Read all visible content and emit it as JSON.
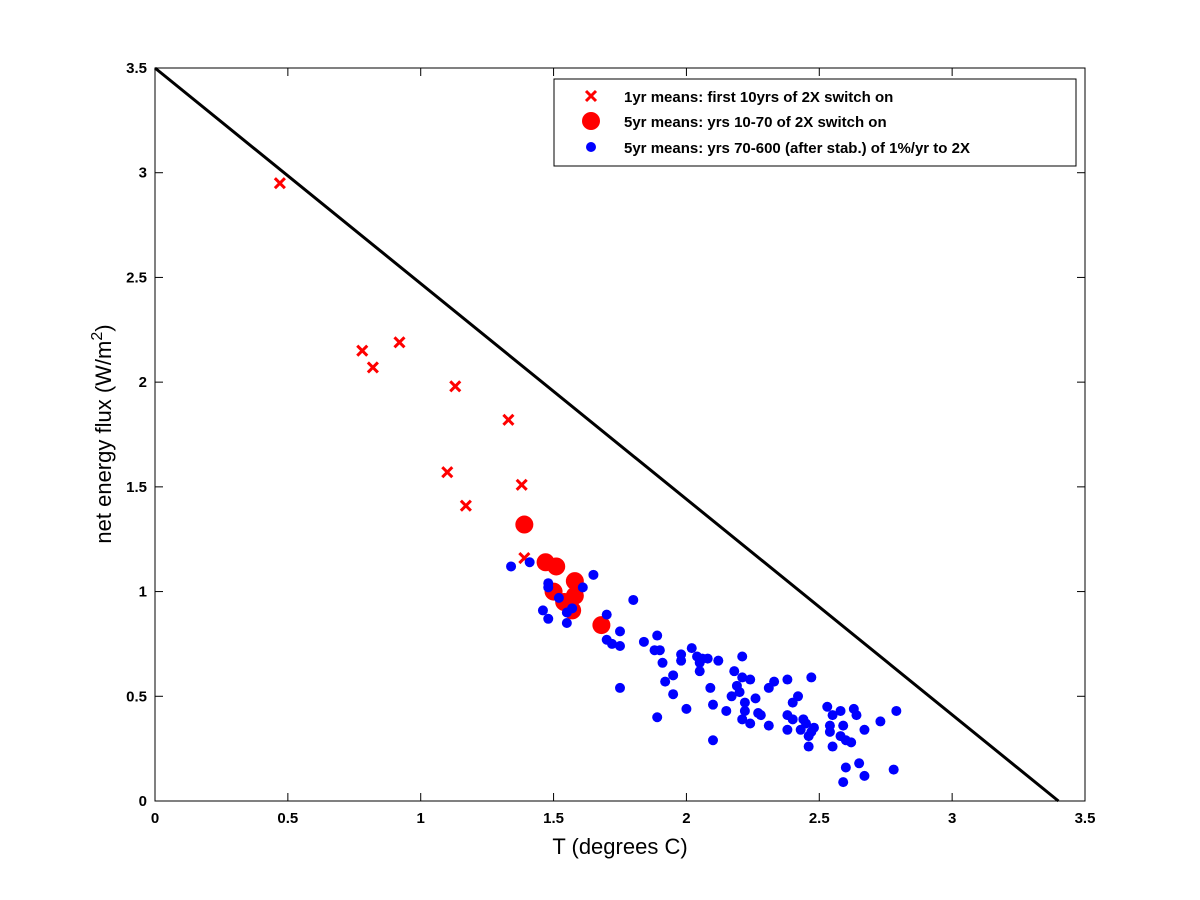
{
  "chart_data": {
    "type": "scatter",
    "xlabel": "T (degrees C)",
    "ylabel": "net energy flux (W/m²)",
    "xlim": [
      0,
      3.5
    ],
    "ylim": [
      0,
      3.5
    ],
    "x_ticks": [
      "0",
      "0.5",
      "1",
      "1.5",
      "2",
      "2.5",
      "3",
      "3.5"
    ],
    "y_ticks": [
      "0",
      "0.5",
      "1",
      "1.5",
      "2",
      "2.5",
      "3",
      "3.5"
    ],
    "grid": false,
    "legend_position": "top-right",
    "reference_line": {
      "color": "#000000",
      "points": [
        [
          0,
          3.5
        ],
        [
          3.4,
          0
        ]
      ]
    },
    "series": [
      {
        "name": "1yr means: first 10yrs of 2X switch on",
        "marker": "x",
        "color": "#ff0000",
        "points": [
          [
            0.47,
            2.95
          ],
          [
            0.78,
            2.15
          ],
          [
            0.82,
            2.07
          ],
          [
            0.92,
            2.19
          ],
          [
            1.13,
            1.98
          ],
          [
            1.33,
            1.82
          ],
          [
            1.1,
            1.57
          ],
          [
            1.17,
            1.41
          ],
          [
            1.38,
            1.51
          ],
          [
            1.39,
            1.16
          ]
        ]
      },
      {
        "name": "5yr means: yrs 10-70 of 2X switch on",
        "marker": "large-dot",
        "color": "#ff0000",
        "points": [
          [
            1.39,
            1.32
          ],
          [
            1.47,
            1.14
          ],
          [
            1.51,
            1.12
          ],
          [
            1.58,
            1.05
          ],
          [
            1.5,
            1.0
          ],
          [
            1.58,
            0.98
          ],
          [
            1.54,
            0.95
          ],
          [
            1.57,
            0.91
          ],
          [
            1.68,
            0.84
          ]
        ]
      },
      {
        "name": "5yr means: yrs 70-600 (after stab.) of 1%/yr to 2X",
        "marker": "dot",
        "color": "#0000ff",
        "points": [
          [
            1.34,
            1.12
          ],
          [
            1.41,
            1.14
          ],
          [
            1.48,
            1.04
          ],
          [
            1.48,
            1.02
          ],
          [
            1.46,
            0.91
          ],
          [
            1.48,
            0.87
          ],
          [
            1.52,
            0.97
          ],
          [
            1.55,
            0.9
          ],
          [
            1.55,
            0.85
          ],
          [
            1.57,
            0.92
          ],
          [
            1.61,
            1.02
          ],
          [
            1.65,
            1.08
          ],
          [
            1.7,
            0.89
          ],
          [
            1.7,
            0.77
          ],
          [
            1.72,
            0.75
          ],
          [
            1.75,
            0.81
          ],
          [
            1.75,
            0.74
          ],
          [
            1.75,
            0.54
          ],
          [
            1.8,
            0.96
          ],
          [
            1.84,
            0.76
          ],
          [
            1.88,
            0.72
          ],
          [
            1.89,
            0.79
          ],
          [
            1.9,
            0.72
          ],
          [
            1.91,
            0.66
          ],
          [
            1.92,
            0.57
          ],
          [
            1.89,
            0.4
          ],
          [
            1.95,
            0.6
          ],
          [
            1.95,
            0.51
          ],
          [
            1.98,
            0.67
          ],
          [
            1.98,
            0.7
          ],
          [
            2.0,
            0.44
          ],
          [
            2.02,
            0.73
          ],
          [
            2.04,
            0.69
          ],
          [
            2.05,
            0.62
          ],
          [
            2.05,
            0.66
          ],
          [
            2.06,
            0.68
          ],
          [
            2.08,
            0.68
          ],
          [
            2.09,
            0.54
          ],
          [
            2.1,
            0.46
          ],
          [
            2.1,
            0.29
          ],
          [
            2.12,
            0.67
          ],
          [
            2.15,
            0.43
          ],
          [
            2.17,
            0.5
          ],
          [
            2.18,
            0.62
          ],
          [
            2.19,
            0.55
          ],
          [
            2.2,
            0.52
          ],
          [
            2.21,
            0.69
          ],
          [
            2.21,
            0.59
          ],
          [
            2.22,
            0.47
          ],
          [
            2.22,
            0.43
          ],
          [
            2.21,
            0.39
          ],
          [
            2.24,
            0.58
          ],
          [
            2.24,
            0.37
          ],
          [
            2.26,
            0.49
          ],
          [
            2.27,
            0.42
          ],
          [
            2.28,
            0.41
          ],
          [
            2.31,
            0.36
          ],
          [
            2.31,
            0.54
          ],
          [
            2.33,
            0.57
          ],
          [
            2.38,
            0.58
          ],
          [
            2.38,
            0.41
          ],
          [
            2.38,
            0.34
          ],
          [
            2.4,
            0.47
          ],
          [
            2.4,
            0.39
          ],
          [
            2.42,
            0.5
          ],
          [
            2.43,
            0.34
          ],
          [
            2.44,
            0.39
          ],
          [
            2.45,
            0.37
          ],
          [
            2.46,
            0.31
          ],
          [
            2.46,
            0.26
          ],
          [
            2.47,
            0.59
          ],
          [
            2.47,
            0.33
          ],
          [
            2.48,
            0.35
          ],
          [
            2.53,
            0.45
          ],
          [
            2.54,
            0.36
          ],
          [
            2.54,
            0.33
          ],
          [
            2.55,
            0.41
          ],
          [
            2.55,
            0.26
          ],
          [
            2.58,
            0.43
          ],
          [
            2.58,
            0.31
          ],
          [
            2.59,
            0.36
          ],
          [
            2.6,
            0.29
          ],
          [
            2.6,
            0.16
          ],
          [
            2.59,
            0.09
          ],
          [
            2.62,
            0.28
          ],
          [
            2.63,
            0.44
          ],
          [
            2.64,
            0.41
          ],
          [
            2.65,
            0.18
          ],
          [
            2.67,
            0.34
          ],
          [
            2.67,
            0.12
          ],
          [
            2.73,
            0.38
          ],
          [
            2.79,
            0.43
          ],
          [
            2.78,
            0.15
          ]
        ]
      }
    ]
  }
}
